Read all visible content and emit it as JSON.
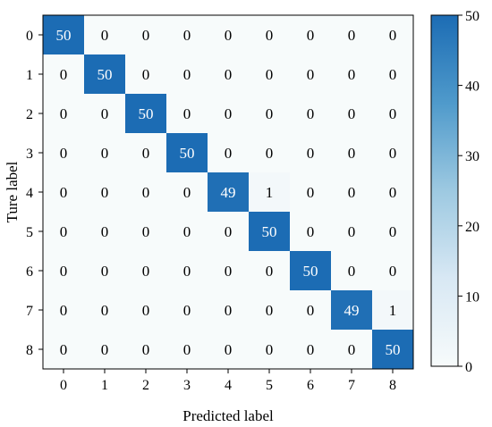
{
  "chart_data": {
    "type": "heatmap",
    "title": "",
    "xlabel": "Predicted label",
    "ylabel": "Ture label",
    "x_categories": [
      "0",
      "1",
      "2",
      "3",
      "4",
      "5",
      "6",
      "7",
      "8"
    ],
    "y_categories": [
      "0",
      "1",
      "2",
      "3",
      "4",
      "5",
      "6",
      "7",
      "8"
    ],
    "values": [
      [
        50,
        0,
        0,
        0,
        0,
        0,
        0,
        0,
        0
      ],
      [
        0,
        50,
        0,
        0,
        0,
        0,
        0,
        0,
        0
      ],
      [
        0,
        0,
        50,
        0,
        0,
        0,
        0,
        0,
        0
      ],
      [
        0,
        0,
        0,
        50,
        0,
        0,
        0,
        0,
        0
      ],
      [
        0,
        0,
        0,
        0,
        49,
        1,
        0,
        0,
        0
      ],
      [
        0,
        0,
        0,
        0,
        0,
        50,
        0,
        0,
        0
      ],
      [
        0,
        0,
        0,
        0,
        0,
        0,
        50,
        0,
        0
      ],
      [
        0,
        0,
        0,
        0,
        0,
        0,
        0,
        49,
        1
      ],
      [
        0,
        0,
        0,
        0,
        0,
        0,
        0,
        0,
        50
      ]
    ],
    "colorbar": {
      "ticks": [
        0,
        10,
        20,
        30,
        40,
        50
      ],
      "range": [
        0,
        50
      ],
      "colormap": "Blues",
      "low_color": "#f7fbfb",
      "high_color": "#1c6cb4"
    },
    "grid": false,
    "legend": "none"
  }
}
